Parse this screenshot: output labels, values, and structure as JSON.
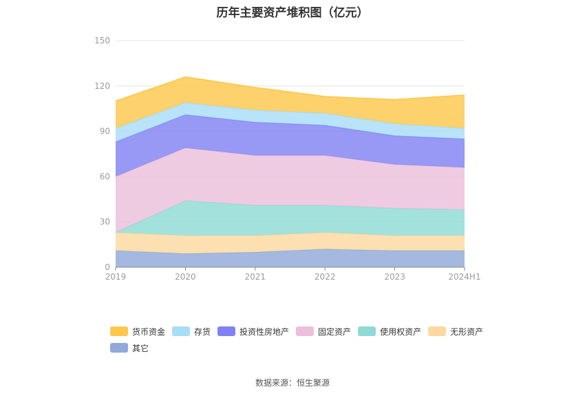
{
  "title": "历年主要资产堆积图（亿元）",
  "source": "数据来源：恒生聚源",
  "colors": {
    "货币资金": "#fcc84c",
    "存货": "#a8ddf7",
    "投资性房地产": "#8082f3",
    "固定资产": "#ecbfda",
    "使用权资产": "#8fdad6",
    "无形资产": "#fdd9a0",
    "其它": "#90a9d8"
  },
  "chart_data": {
    "type": "area",
    "stacked": true,
    "categories": [
      "2019",
      "2020",
      "2021",
      "2022",
      "2023",
      "2024H1"
    ],
    "ylim": [
      0,
      150
    ],
    "yticks": [
      0,
      30,
      60,
      90,
      120,
      150
    ],
    "grid": true,
    "legend_position": "bottom",
    "series": [
      {
        "name": "其它",
        "values": [
          11,
          9,
          10,
          12,
          11,
          11
        ]
      },
      {
        "name": "无形资产",
        "values": [
          12,
          12,
          11,
          11,
          10,
          10
        ]
      },
      {
        "name": "使用权资产",
        "values": [
          0,
          23,
          20,
          18,
          18,
          17
        ]
      },
      {
        "name": "固定资产",
        "values": [
          37,
          35,
          33,
          33,
          29,
          28
        ]
      },
      {
        "name": "投资性房地产",
        "values": [
          23,
          22,
          22,
          20,
          19,
          19
        ]
      },
      {
        "name": "存货",
        "values": [
          9,
          8,
          8,
          8,
          8,
          7
        ]
      },
      {
        "name": "货币资金",
        "values": [
          18,
          17,
          15,
          11,
          16,
          22
        ]
      }
    ],
    "legend_order": [
      "货币资金",
      "存货",
      "投资性房地产",
      "固定资产",
      "使用权资产",
      "无形资产",
      "其它"
    ]
  }
}
